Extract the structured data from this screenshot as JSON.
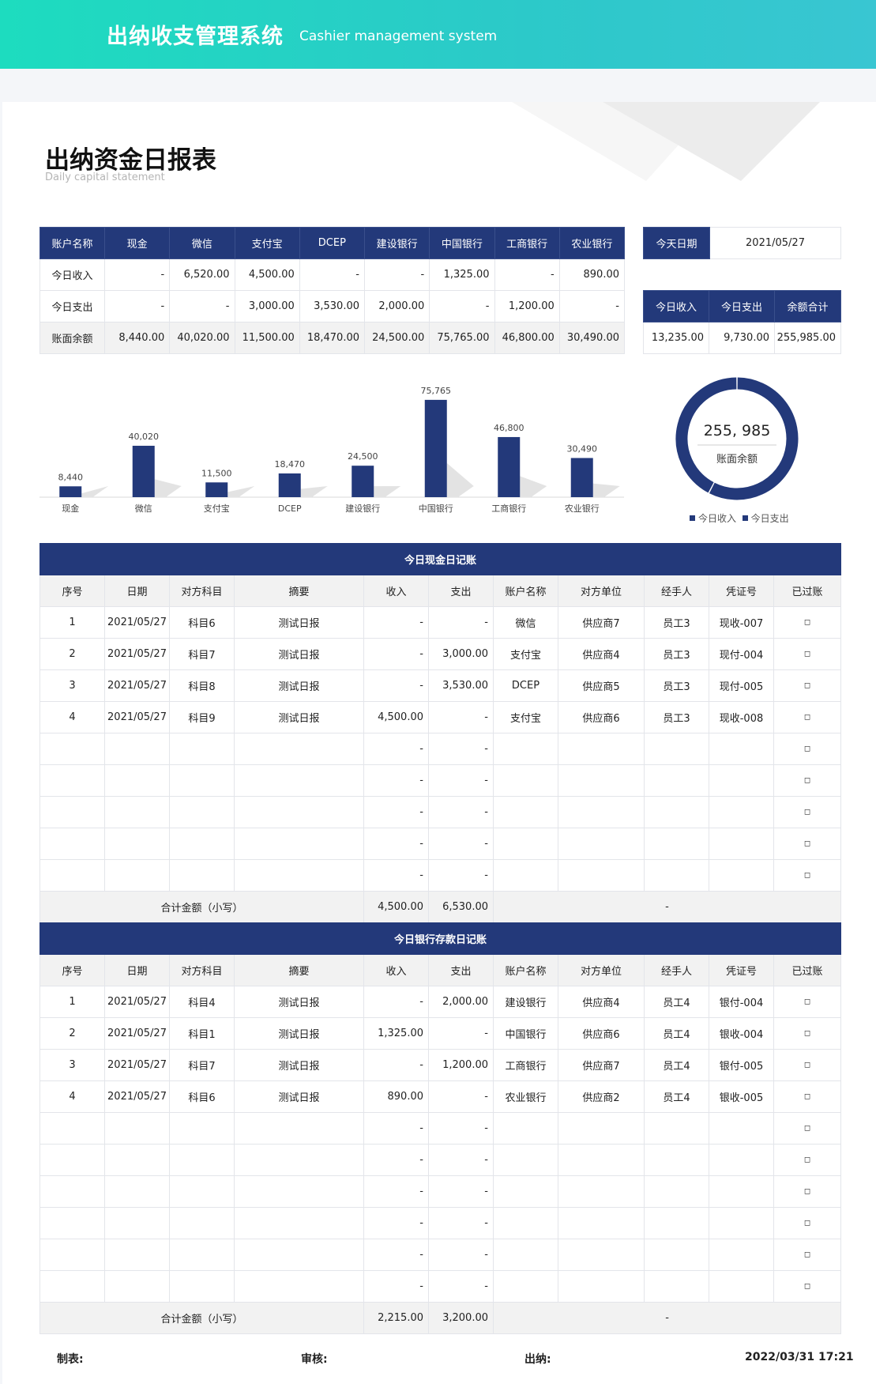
{
  "header": {
    "title": "出纳收支管理系统",
    "subtitle": "Cashier management system"
  },
  "page": {
    "title": "出纳资金日报表",
    "subtitle": "Daily capital statement"
  },
  "summary": {
    "columns": [
      "账户名称",
      "现金",
      "微信",
      "支付宝",
      "DCEP",
      "建设银行",
      "中国银行",
      "工商银行",
      "农业银行"
    ],
    "rows": [
      [
        "今日收入",
        "-",
        "6,520.00",
        "4,500.00",
        "-",
        "-",
        "1,325.00",
        "-",
        "890.00"
      ],
      [
        "今日支出",
        "-",
        "-",
        "3,000.00",
        "3,530.00",
        "2,000.00",
        "-",
        "1,200.00",
        "-"
      ],
      [
        "账面余额",
        "8,440.00",
        "40,020.00",
        "11,500.00",
        "18,470.00",
        "24,500.00",
        "75,765.00",
        "46,800.00",
        "30,490.00"
      ]
    ]
  },
  "today_date": {
    "label": "今天日期",
    "value": "2021/05/27"
  },
  "totals": {
    "columns": [
      "今日收入",
      "今日支出",
      "余额合计"
    ],
    "values": [
      "13,235.00",
      "9,730.00",
      "255,985.00"
    ]
  },
  "chart_data": [
    {
      "type": "bar",
      "categories": [
        "现金",
        "微信",
        "支付宝",
        "DCEP",
        "建设银行",
        "中国银行",
        "工商银行",
        "农业银行"
      ],
      "values": [
        8440,
        40020,
        11500,
        18470,
        24500,
        75765,
        46800,
        30490
      ],
      "value_labels": [
        "8,440",
        "40,020",
        "11,500",
        "18,470",
        "24,500",
        "75,765",
        "46,800",
        "30,490"
      ],
      "ylim": [
        0,
        80000
      ],
      "color": "#23397a"
    },
    {
      "type": "pie",
      "center_value": "255, 985",
      "center_label": "账面余额",
      "series": [
        {
          "name": "今日收入",
          "value": 13235
        },
        {
          "name": "今日支出",
          "value": 9730
        }
      ],
      "legend": [
        "今日收入",
        "今日支出"
      ],
      "color": "#23397a"
    }
  ],
  "cash": {
    "title": "今日现金日记账",
    "columns": [
      "序号",
      "日期",
      "对方科目",
      "摘要",
      "收入",
      "支出",
      "账户名称",
      "对方单位",
      "经手人",
      "凭证号",
      "已过账"
    ],
    "rows": [
      [
        "1",
        "2021/05/27",
        "科目6",
        "测试日报",
        "-",
        "-",
        "微信",
        "供应商7",
        "员工3",
        "现收-007",
        "◻"
      ],
      [
        "2",
        "2021/05/27",
        "科目7",
        "测试日报",
        "-",
        "3,000.00",
        "支付宝",
        "供应商4",
        "员工3",
        "现付-004",
        "◻"
      ],
      [
        "3",
        "2021/05/27",
        "科目8",
        "测试日报",
        "-",
        "3,530.00",
        "DCEP",
        "供应商5",
        "员工3",
        "现付-005",
        "◻"
      ],
      [
        "4",
        "2021/05/27",
        "科目9",
        "测试日报",
        "4,500.00",
        "-",
        "支付宝",
        "供应商6",
        "员工3",
        "现收-008",
        "◻"
      ],
      [
        "",
        "",
        "",
        "",
        "-",
        "-",
        "",
        "",
        "",
        "",
        "◻"
      ],
      [
        "",
        "",
        "",
        "",
        "-",
        "-",
        "",
        "",
        "",
        "",
        "◻"
      ],
      [
        "",
        "",
        "",
        "",
        "-",
        "-",
        "",
        "",
        "",
        "",
        "◻"
      ],
      [
        "",
        "",
        "",
        "",
        "-",
        "-",
        "",
        "",
        "",
        "",
        "◻"
      ],
      [
        "",
        "",
        "",
        "",
        "-",
        "-",
        "",
        "",
        "",
        "",
        "◻"
      ]
    ],
    "total_label": "合计金额（小写）",
    "total_income": "4,500.00",
    "total_expense": "6,530.00",
    "total_rest": "-"
  },
  "bank": {
    "title": "今日银行存款日记账",
    "columns": [
      "序号",
      "日期",
      "对方科目",
      "摘要",
      "收入",
      "支出",
      "账户名称",
      "对方单位",
      "经手人",
      "凭证号",
      "已过账"
    ],
    "rows": [
      [
        "1",
        "2021/05/27",
        "科目4",
        "测试日报",
        "-",
        "2,000.00",
        "建设银行",
        "供应商4",
        "员工4",
        "银付-004",
        "◻"
      ],
      [
        "2",
        "2021/05/27",
        "科目1",
        "测试日报",
        "1,325.00",
        "-",
        "中国银行",
        "供应商6",
        "员工4",
        "银收-004",
        "◻"
      ],
      [
        "3",
        "2021/05/27",
        "科目7",
        "测试日报",
        "-",
        "1,200.00",
        "工商银行",
        "供应商7",
        "员工4",
        "银付-005",
        "◻"
      ],
      [
        "4",
        "2021/05/27",
        "科目6",
        "测试日报",
        "890.00",
        "-",
        "农业银行",
        "供应商2",
        "员工4",
        "银收-005",
        "◻"
      ],
      [
        "",
        "",
        "",
        "",
        "-",
        "-",
        "",
        "",
        "",
        "",
        "◻"
      ],
      [
        "",
        "",
        "",
        "",
        "-",
        "-",
        "",
        "",
        "",
        "",
        "◻"
      ],
      [
        "",
        "",
        "",
        "",
        "-",
        "-",
        "",
        "",
        "",
        "",
        "◻"
      ],
      [
        "",
        "",
        "",
        "",
        "-",
        "-",
        "",
        "",
        "",
        "",
        "◻"
      ],
      [
        "",
        "",
        "",
        "",
        "-",
        "-",
        "",
        "",
        "",
        "",
        "◻"
      ],
      [
        "",
        "",
        "",
        "",
        "-",
        "-",
        "",
        "",
        "",
        "",
        "◻"
      ]
    ],
    "total_label": "合计金额（小写）",
    "total_income": "2,215.00",
    "total_expense": "3,200.00",
    "total_rest": "-"
  },
  "footer": {
    "maker": "制表:",
    "reviewer": "审核:",
    "cashier": "出纳:",
    "timestamp": "2022/03/31 17:21"
  }
}
